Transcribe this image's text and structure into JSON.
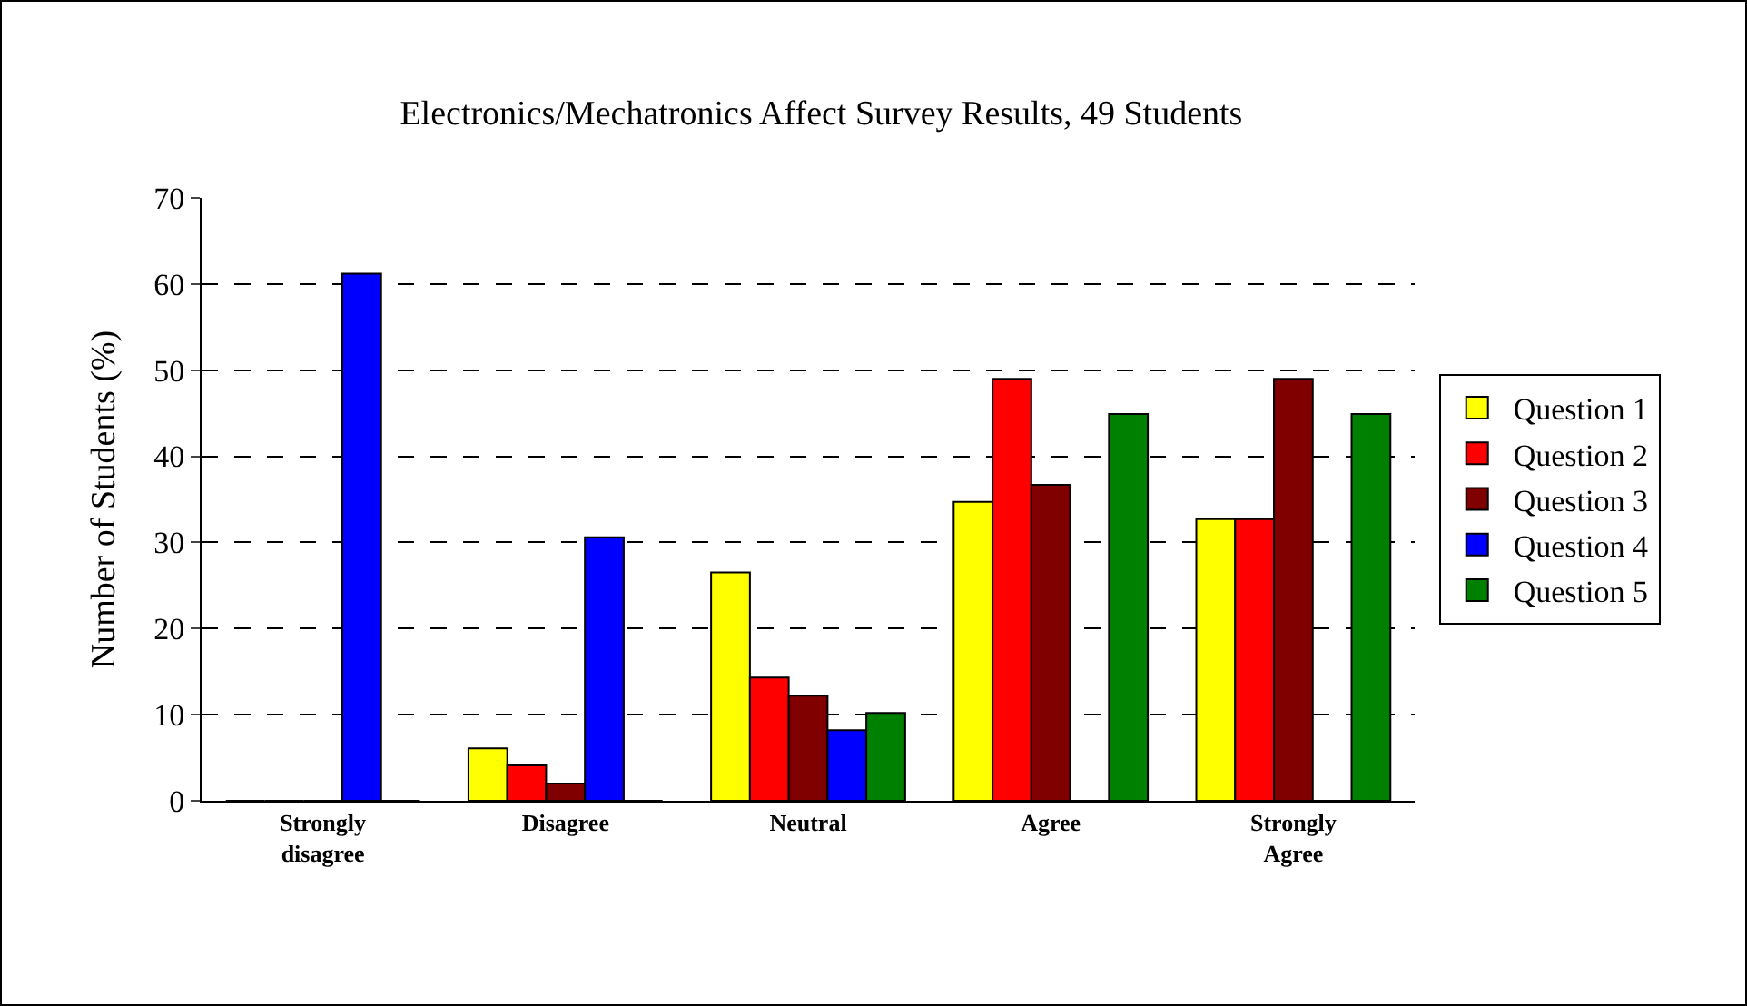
{
  "chart_data": {
    "type": "bar",
    "title": "Electronics/Mechatronics Affect Survey Results, 49 Students",
    "ylabel": "Number of Students (%)",
    "categories": [
      "Strongly disagree",
      "Disagree",
      "Neutral",
      "Agree",
      "Strongly Agree"
    ],
    "series": [
      {
        "name": "Question 1",
        "color": "#ffff00",
        "values": [
          0,
          6.1,
          26.5,
          34.7,
          32.7
        ]
      },
      {
        "name": "Question 2",
        "color": "#ff0000",
        "values": [
          0,
          4.1,
          14.3,
          49.0,
          32.7
        ]
      },
      {
        "name": "Question 3",
        "color": "#800000",
        "values": [
          0,
          2.0,
          12.2,
          36.7,
          49.0
        ]
      },
      {
        "name": "Question 4",
        "color": "#0000ff",
        "values": [
          61.2,
          30.6,
          8.2,
          0,
          0
        ]
      },
      {
        "name": "Question 5",
        "color": "#008000",
        "values": [
          0,
          0,
          10.2,
          44.9,
          44.9
        ]
      }
    ],
    "ylim": [
      0,
      70
    ],
    "yticks": [
      0,
      10,
      20,
      30,
      40,
      50,
      60,
      70
    ],
    "grid": "y",
    "legend": "right"
  }
}
